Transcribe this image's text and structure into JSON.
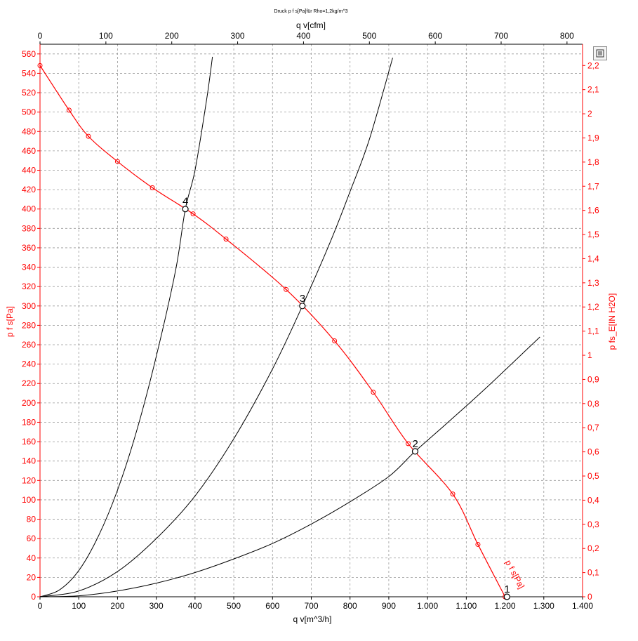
{
  "chart_data": {
    "type": "line",
    "title": "Druck p f s[Pa]für Rho=1,2kg/m^3",
    "xlabel": "q v[m^3/h]",
    "x2label": "q v[cfm]",
    "ylabel": "p f s[Pa]",
    "y2label": "p fs_E[IN H2O]",
    "xlim": [
      0,
      1400
    ],
    "ylim": [
      0,
      570
    ],
    "x2lim": [
      0,
      823.6
    ],
    "y2lim": [
      0,
      2.288
    ],
    "x_ticks": [
      0,
      100,
      200,
      300,
      400,
      500,
      600,
      700,
      800,
      900,
      1000,
      1100,
      1200,
      1300,
      1400
    ],
    "x_tick_labels": [
      "0",
      "100",
      "200",
      "300",
      "400",
      "500",
      "600",
      "700",
      "800",
      "900",
      "1.000",
      "1.100",
      "1.200",
      "1.300",
      "1.400"
    ],
    "x2_ticks": [
      0,
      100,
      200,
      300,
      400,
      500,
      600,
      700,
      800
    ],
    "x2_tick_labels": [
      "0",
      "100",
      "200",
      "300",
      "400",
      "500",
      "600",
      "700",
      "800"
    ],
    "y_ticks": [
      0,
      20,
      40,
      60,
      80,
      100,
      120,
      140,
      160,
      180,
      200,
      220,
      240,
      260,
      280,
      300,
      320,
      340,
      360,
      380,
      400,
      420,
      440,
      460,
      480,
      500,
      520,
      540,
      560
    ],
    "y_tick_labels": [
      "0",
      "20",
      "40",
      "60",
      "80",
      "100",
      "120",
      "140",
      "160",
      "180",
      "200",
      "220",
      "240",
      "260",
      "280",
      "300",
      "320",
      "340",
      "360",
      "380",
      "400",
      "420",
      "440",
      "460",
      "480",
      "500",
      "520",
      "540",
      "560"
    ],
    "y2_ticks": [
      0,
      0.1,
      0.2,
      0.3,
      0.4,
      0.5,
      0.6,
      0.7,
      0.8,
      0.9,
      1,
      1.1,
      1.2,
      1.3,
      1.4,
      1.5,
      1.6,
      1.7,
      1.8,
      1.9,
      2,
      2.1,
      2.2
    ],
    "y2_tick_labels": [
      "0",
      "0,1",
      "0,2",
      "0,3",
      "0,4",
      "0,5",
      "0,6",
      "0,7",
      "0,8",
      "0,9",
      "1",
      "1,1",
      "1,2",
      "1,3",
      "1,4",
      "1,5",
      "1,6",
      "1,7",
      "1,8",
      "1,9",
      "2",
      "2,1",
      "2,2"
    ],
    "grid": true,
    "fan_curve": {
      "name": "p f s[Pa]",
      "color": "#ff0000",
      "x": [
        0,
        75,
        125,
        200,
        290,
        395,
        480,
        635,
        760,
        860,
        950,
        1065,
        1130,
        1200
      ],
      "y": [
        548,
        502,
        475,
        449,
        422,
        395,
        369,
        317,
        264,
        211,
        158,
        106,
        54,
        0
      ]
    },
    "system_curves": [
      {
        "color": "#000000",
        "x": [
          0,
          50,
          100,
          150,
          200,
          250,
          300,
          350,
          375,
          400,
          430,
          445
        ],
        "y": [
          0,
          7,
          27,
          62,
          110,
          172,
          248,
          337,
          400,
          440,
          513,
          557
        ]
      },
      {
        "color": "#000000",
        "x": [
          0,
          100,
          200,
          300,
          400,
          500,
          600,
          677,
          750,
          800,
          850,
          910
        ],
        "y": [
          0,
          6,
          26,
          60,
          104,
          163,
          235,
          300,
          367,
          418,
          472,
          556
        ]
      },
      {
        "color": "#000000",
        "x": [
          0,
          100,
          200,
          300,
          400,
          500,
          600,
          700,
          800,
          900,
          968,
          1050,
          1150,
          1290
        ],
        "y": [
          0,
          1,
          6,
          14,
          25,
          39,
          55,
          75,
          98,
          124,
          150,
          179,
          215,
          268
        ]
      }
    ],
    "operating_points": [
      {
        "label": "1",
        "x": 1205,
        "y": 0
      },
      {
        "label": "2",
        "x": 968,
        "y": 150
      },
      {
        "label": "3",
        "x": 677,
        "y": 300
      },
      {
        "label": "4",
        "x": 375,
        "y": 400
      }
    ],
    "curve_label": "p f s[Pa]"
  }
}
